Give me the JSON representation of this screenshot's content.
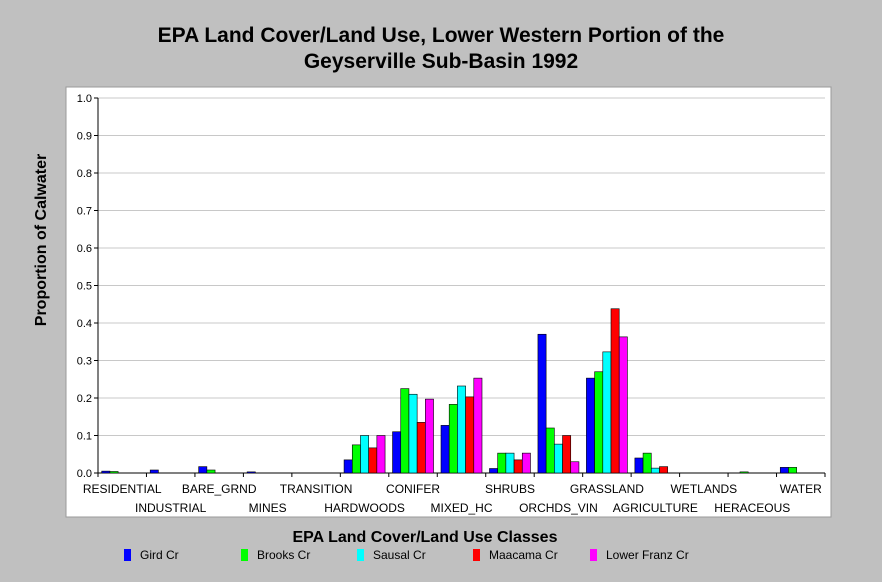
{
  "chart_data": {
    "type": "bar",
    "title": "EPA Land Cover/Land Use, Lower Western Portion of the",
    "subtitle": "Geyserville Sub-Basin 1992",
    "xlabel": "EPA Land Cover/Land Use Classes",
    "ylabel": "Proportion of Calwater",
    "ylim": [
      0,
      1.0
    ],
    "yticks": [
      "0.0",
      "0.1",
      "0.2",
      "0.3",
      "0.4",
      "0.5",
      "0.6",
      "0.7",
      "0.8",
      "0.9",
      "1.0"
    ],
    "grid": true,
    "legend_position": "bottom",
    "categories": [
      "RESIDENTIAL",
      "INDUSTRIAL",
      "BARE_GRND",
      "MINES",
      "TRANSITION",
      "HARDWOODS",
      "CONIFER",
      "MIXED_HC",
      "SHRUBS",
      "ORCHDS_VIN",
      "GRASSLAND",
      "AGRICULTURE",
      "WETLANDS",
      "HERACEOUS",
      "WATER"
    ],
    "series": [
      {
        "name": "Gird Cr",
        "color": "#0000ff",
        "values": [
          0.005,
          0.008,
          0.017,
          0.003,
          0,
          0.035,
          0.11,
          0.127,
          0.012,
          0.37,
          0.253,
          0.04,
          0,
          0,
          0.015
        ]
      },
      {
        "name": "Brooks Cr",
        "color": "#00ff00",
        "values": [
          0.004,
          0,
          0.008,
          0,
          0,
          0.075,
          0.225,
          0.183,
          0.053,
          0.12,
          0.27,
          0.053,
          0,
          0.003,
          0.015
        ]
      },
      {
        "name": "Sausal Cr",
        "color": "#00ffff",
        "values": [
          0,
          0,
          0,
          0,
          0,
          0.1,
          0.21,
          0.232,
          0.053,
          0.077,
          0.323,
          0.013,
          0,
          0,
          0
        ]
      },
      {
        "name": "Maacama Cr",
        "color": "#ff0000",
        "values": [
          0,
          0,
          0,
          0,
          0,
          0.067,
          0.135,
          0.203,
          0.035,
          0.1,
          0.438,
          0.017,
          0,
          0,
          0
        ]
      },
      {
        "name": "Lower Franz Cr",
        "color": "#ff00ff",
        "values": [
          0,
          0,
          0,
          0,
          0,
          0.1,
          0.197,
          0.253,
          0.053,
          0.03,
          0.363,
          0,
          0,
          0,
          0
        ]
      }
    ]
  }
}
